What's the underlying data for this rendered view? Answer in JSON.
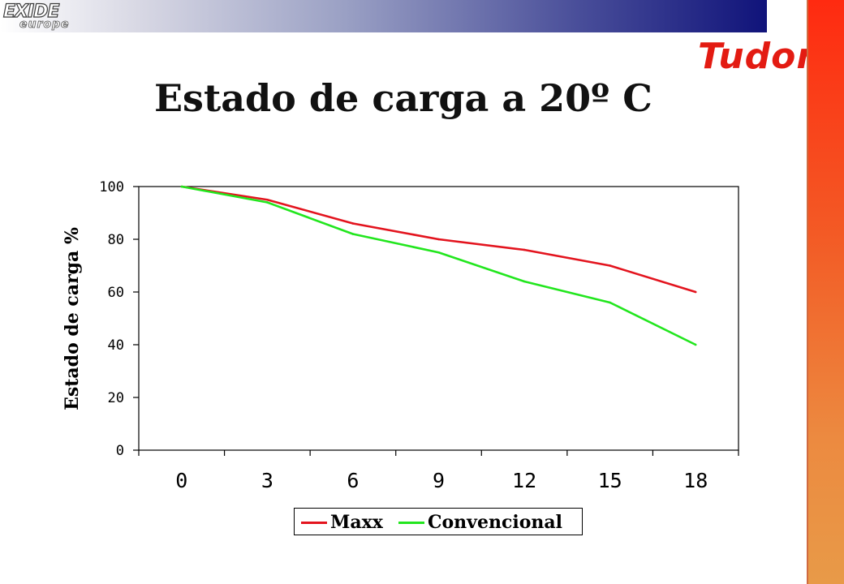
{
  "logos": {
    "exide_word": "EXIDE",
    "exide_sub": "europe",
    "tudor": "Tudor"
  },
  "colors": {
    "maxx": "#e3141e",
    "convencional": "#22e61e",
    "brand_red": "#e31b12"
  },
  "chart_data": {
    "type": "line",
    "title": "Estado de carga a 20º C",
    "xlabel": "",
    "ylabel": "Estado  de carga %",
    "categories": [
      "0",
      "3",
      "6",
      "9",
      "12",
      "15",
      "18"
    ],
    "ylim": [
      0,
      100
    ],
    "yticks": [
      0,
      20,
      40,
      60,
      80,
      100
    ],
    "grid": false,
    "legend": "bottom",
    "series": [
      {
        "name": "Maxx",
        "values": [
          100,
          95,
          86,
          80,
          76,
          70,
          60
        ]
      },
      {
        "name": "Convencional",
        "values": [
          100,
          94,
          82,
          75,
          64,
          56,
          40
        ]
      }
    ]
  }
}
